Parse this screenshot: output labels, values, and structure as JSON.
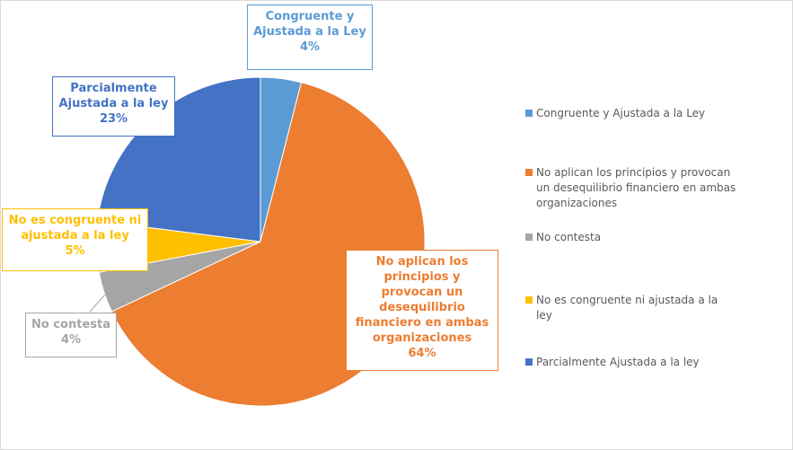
{
  "chart_data": {
    "type": "pie",
    "categories": [
      "Congruente y Ajustada a la Ley",
      "No aplican los principios y provocan un desequilibrio financiero en ambas organizaciones",
      "No contesta",
      "No es congruente ni ajustada a la ley",
      "Parcialmente Ajustada a la ley"
    ],
    "values": [
      4,
      64,
      4,
      5,
      23
    ],
    "value_labels": [
      "4%",
      "64%",
      "4%",
      "5%",
      "23%"
    ],
    "colors": [
      "#5b9bd5",
      "#ed7d31",
      "#a5a5a5",
      "#ffc000",
      "#4472c4"
    ],
    "legend": "right"
  }
}
